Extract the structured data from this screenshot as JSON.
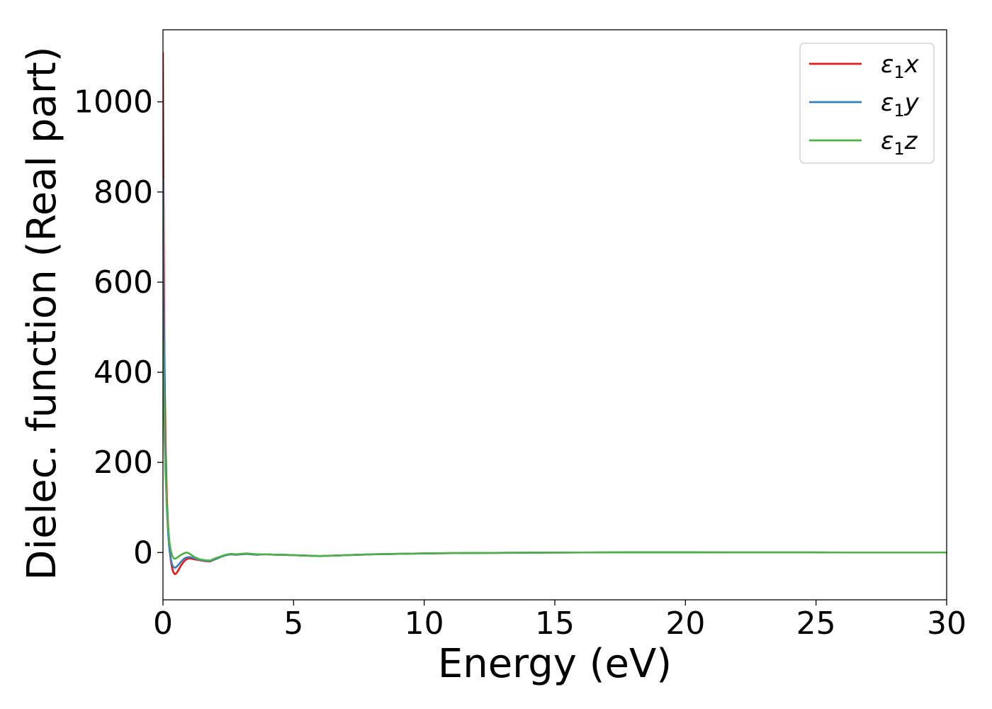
{
  "chart_data": {
    "type": "line",
    "title": "",
    "xlabel": "Energy (eV)",
    "ylabel": "Dielec. function (Real part)",
    "xlim": [
      0,
      30
    ],
    "ylim": [
      -105,
      1160
    ],
    "xticks": [
      0,
      5,
      10,
      15,
      20,
      25,
      30
    ],
    "xtick_labels": [
      "0",
      "5",
      "10",
      "15",
      "20",
      "25",
      "30"
    ],
    "yticks": [
      0,
      200,
      400,
      600,
      800,
      1000
    ],
    "ytick_labels": [
      "0",
      "200",
      "400",
      "600",
      "800",
      "1000"
    ],
    "grid": false,
    "legend_position": "top-right",
    "series": [
      {
        "name": "ε1x",
        "name_parts": {
          "base": "ε",
          "sub": "1",
          "tail": "x"
        },
        "color": "#e41a1c",
        "x": [
          0.0,
          0.03,
          0.06,
          0.1,
          0.15,
          0.2,
          0.25,
          0.3,
          0.35,
          0.4,
          0.45,
          0.5,
          0.55,
          0.6,
          0.7,
          0.8,
          0.9,
          1.0,
          1.1,
          1.2,
          1.4,
          1.6,
          1.8,
          2.0,
          2.2,
          2.4,
          2.6,
          2.8,
          3.0,
          3.2,
          3.4,
          3.6,
          3.8,
          4.0,
          4.3,
          4.6,
          5.0,
          5.5,
          6.0,
          6.5,
          7.0,
          8.0,
          9.0,
          10.0,
          12.0,
          14.0,
          16.0,
          18.0,
          20.0,
          22.0,
          24.0,
          26.0,
          28.0,
          30.0
        ],
        "y": [
          1110,
          700,
          420,
          240,
          120,
          55,
          10,
          -18,
          -35,
          -44,
          -48,
          -47,
          -43,
          -38,
          -28,
          -20,
          -15,
          -13,
          -14,
          -15,
          -17,
          -19,
          -20,
          -15,
          -10,
          -6,
          -4,
          -5,
          -4,
          -3,
          -4,
          -5,
          -4,
          -4,
          -5,
          -5,
          -6,
          -7,
          -8,
          -7,
          -6,
          -4,
          -3,
          -2,
          -1,
          -0.5,
          0,
          0.3,
          0.3,
          0.2,
          0.1,
          0,
          0,
          0
        ]
      },
      {
        "name": "ε1y",
        "name_parts": {
          "base": "ε",
          "sub": "1",
          "tail": "y"
        },
        "color": "#377eb8",
        "x": [
          0.0,
          0.03,
          0.06,
          0.1,
          0.15,
          0.2,
          0.25,
          0.3,
          0.35,
          0.4,
          0.45,
          0.5,
          0.55,
          0.6,
          0.7,
          0.8,
          0.9,
          1.0,
          1.1,
          1.2,
          1.4,
          1.6,
          1.8,
          2.0,
          2.2,
          2.4,
          2.6,
          2.8,
          3.0,
          3.2,
          3.4,
          3.6,
          3.8,
          4.0,
          4.3,
          4.6,
          5.0,
          5.5,
          6.0,
          6.5,
          7.0,
          8.0,
          9.0,
          10.0,
          12.0,
          14.0,
          16.0,
          18.0,
          20.0,
          22.0,
          24.0,
          26.0,
          28.0,
          30.0
        ],
        "y": [
          830,
          540,
          330,
          190,
          95,
          40,
          5,
          -15,
          -27,
          -32,
          -34,
          -33,
          -30,
          -27,
          -20,
          -14,
          -11,
          -10,
          -11,
          -13,
          -16,
          -18,
          -19,
          -15,
          -10,
          -6,
          -4,
          -5,
          -4,
          -3,
          -4,
          -5,
          -4,
          -4,
          -5,
          -5,
          -6,
          -7,
          -8,
          -7,
          -6,
          -4,
          -3,
          -2,
          -1,
          -0.5,
          0,
          0.3,
          0.3,
          0.2,
          0.1,
          0,
          0,
          0
        ]
      },
      {
        "name": "ε1z",
        "name_parts": {
          "base": "ε",
          "sub": "1",
          "tail": "z"
        },
        "color": "#4daf4a",
        "x": [
          0.0,
          0.03,
          0.06,
          0.1,
          0.15,
          0.2,
          0.25,
          0.3,
          0.35,
          0.4,
          0.45,
          0.5,
          0.55,
          0.6,
          0.7,
          0.8,
          0.9,
          1.0,
          1.1,
          1.2,
          1.4,
          1.6,
          1.8,
          2.0,
          2.2,
          2.4,
          2.6,
          2.8,
          3.0,
          3.2,
          3.4,
          3.6,
          3.8,
          4.0,
          4.3,
          4.6,
          5.0,
          5.5,
          6.0,
          6.5,
          7.0,
          8.0,
          9.0,
          10.0,
          12.0,
          14.0,
          16.0,
          18.0,
          20.0,
          22.0,
          24.0,
          26.0,
          28.0,
          30.0
        ],
        "y": [
          470,
          360,
          260,
          170,
          100,
          55,
          22,
          4,
          -7,
          -12,
          -14,
          -13,
          -11,
          -9,
          -5,
          -2,
          0,
          -2,
          -6,
          -10,
          -15,
          -17,
          -18,
          -13,
          -9,
          -5,
          -3,
          -4,
          -3,
          -2,
          -3,
          -4,
          -4,
          -4,
          -5,
          -5,
          -6,
          -7,
          -8,
          -7,
          -6,
          -4,
          -3,
          -2,
          -1,
          -0.5,
          0,
          0.3,
          0.3,
          0.2,
          0.1,
          0,
          0,
          0
        ]
      }
    ]
  }
}
